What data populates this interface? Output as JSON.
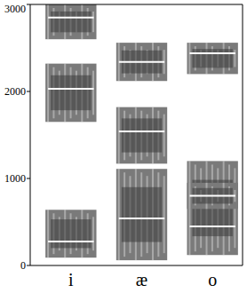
{
  "chart_data": {
    "type": "formant",
    "categories": [
      "i",
      "æ",
      "o"
    ],
    "series": [
      {
        "values": [
          275,
          540,
          450
        ],
        "low": [
          90,
          60,
          120
        ],
        "high": [
          640,
          1110,
          1200
        ]
      },
      {
        "values": [
          2030,
          1540,
          800
        ],
        "low": [
          1650,
          1170,
          650
        ],
        "high": [
          2320,
          1820,
          950
        ]
      },
      {
        "values": [
          2850,
          2340,
          2440
        ],
        "low": [
          2600,
          2120,
          2200
        ],
        "high": [
          3000,
          2560,
          2560
        ]
      }
    ],
    "color": "#7a7a7a",
    "ylim": [
      0,
      3000
    ],
    "yticks": [
      0,
      1000,
      2000,
      3000
    ],
    "grid": false
  }
}
